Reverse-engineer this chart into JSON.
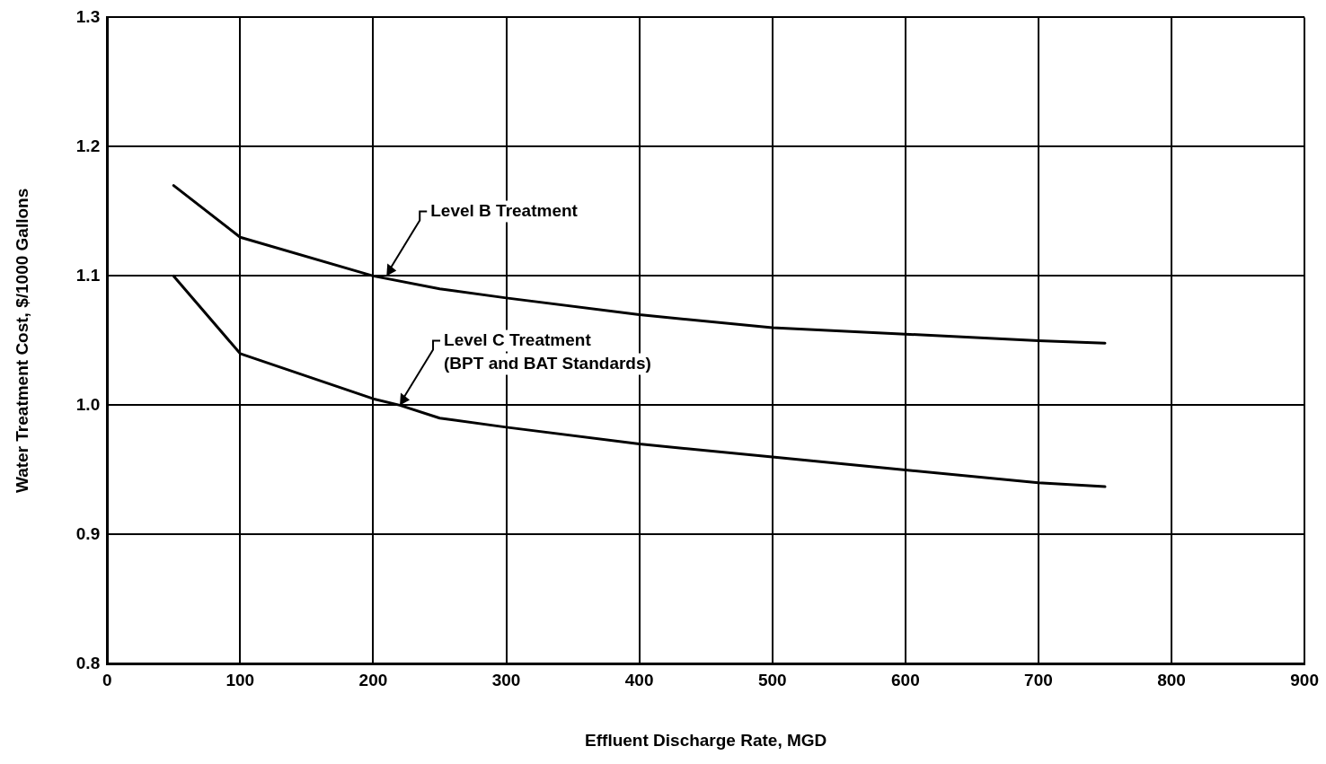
{
  "chart_data": {
    "type": "line",
    "xlabel": "Effluent Discharge Rate, MGD",
    "ylabel": "Water Treatment Cost, $/1000 Gallons",
    "xlim": [
      0,
      900
    ],
    "xticks": [
      0,
      100,
      200,
      300,
      400,
      500,
      600,
      700,
      800,
      900
    ],
    "ylim": [
      0.8,
      1.3
    ],
    "yticks": [
      0.8,
      0.9,
      {
        "value": 1,
        "label": "1.0"
      },
      1.1,
      1.2,
      1.3
    ],
    "grid": true,
    "legend": false,
    "marker": "none",
    "line_style": "solid",
    "series": [
      {
        "color": "#000000",
        "x": [
          50,
          100,
          200,
          250,
          300,
          400,
          500,
          600,
          700,
          750
        ],
        "values": [
          1.17,
          1.13,
          1.1,
          1.09,
          1.083,
          1.07,
          1.06,
          1.055,
          1.05,
          1.048
        ]
      },
      {
        "color": "#000000",
        "x": [
          50,
          100,
          200,
          220,
          250,
          300,
          400,
          500,
          600,
          700,
          750
        ],
        "values": [
          1.1,
          1.04,
          1.005,
          1.0,
          0.99,
          0.983,
          0.97,
          0.96,
          0.95,
          0.94,
          0.937
        ]
      }
    ],
    "annotations": [
      {
        "text": "Level B Treatment",
        "x": 210,
        "y": 1.1
      },
      {
        "text": "Level C Treatment\n(BPT and BAT Standards)",
        "x": 220,
        "y": 1.0
      }
    ]
  }
}
